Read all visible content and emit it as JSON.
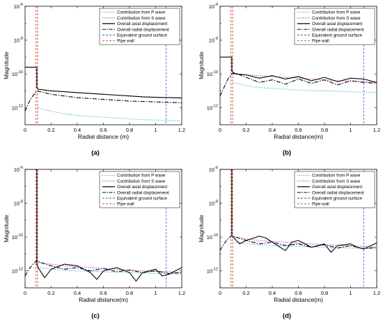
{
  "chart_data": [
    {
      "type": "line",
      "panel_label": "(a)",
      "xlabel": "Radial distance (m)",
      "ylabel": "Magnitude",
      "xlim": [
        0,
        1.2
      ],
      "ylim_log10": [
        -13,
        -6
      ],
      "x_ticks": [
        "0",
        "0.2",
        "0.4",
        "0.6",
        "0.8",
        "1",
        "1.2"
      ],
      "y_ticks": [
        "10^-6",
        "10^-8",
        "10^-10",
        "10^-12"
      ],
      "vlines": {
        "pipe_wall_x": 0.09,
        "ground_surface_x": 1.08
      },
      "legend": [
        "Contribution from P wave",
        "Contribution from S wave",
        "Overall axial displacement",
        "Overall radial displacement",
        "Equivalent ground surface",
        "Pipe wall"
      ],
      "series": [
        {
          "name": "Contribution from P wave",
          "color": "#2bb0c4",
          "style": "dotted",
          "x": [
            0.1,
            0.2,
            0.3,
            0.4,
            0.5,
            0.6,
            0.7,
            0.8,
            0.9,
            1.0,
            1.1,
            1.2
          ],
          "log10y": [
            -12.0,
            -12.2,
            -12.35,
            -12.45,
            -12.5,
            -12.55,
            -12.6,
            -12.65,
            -12.7,
            -12.72,
            -12.75,
            -12.78
          ]
        },
        {
          "name": "Contribution from S wave",
          "color": "#c21cc2",
          "style": "dotted",
          "x": [
            0.1,
            0.2,
            0.3,
            0.4,
            0.5,
            0.6,
            0.7,
            0.8,
            0.9,
            1.0,
            1.1,
            1.2
          ],
          "log10y": [
            -10.9,
            -11.0,
            -11.05,
            -11.1,
            -11.15,
            -11.2,
            -11.25,
            -11.3,
            -11.35,
            -11.37,
            -11.4,
            -11.42
          ]
        },
        {
          "name": "Overall axial displacement",
          "color": "#000000",
          "style": "solid",
          "x": [
            0,
            0.09,
            0.09,
            0.1,
            0.2,
            0.3,
            0.4,
            0.5,
            0.6,
            0.7,
            0.8,
            0.9,
            1.0,
            1.1,
            1.2
          ],
          "log10y": [
            -9.6,
            -9.6,
            -10.8,
            -10.9,
            -11.0,
            -11.05,
            -11.1,
            -11.15,
            -11.2,
            -11.25,
            -11.3,
            -11.35,
            -11.38,
            -11.4,
            -11.42
          ]
        },
        {
          "name": "Overall radial displacement",
          "color": "#000000",
          "style": "dashdot",
          "x": [
            0,
            0.02,
            0.05,
            0.09,
            0.12,
            0.2,
            0.3,
            0.4,
            0.5,
            0.6,
            0.7,
            0.8,
            0.9,
            1.0,
            1.1,
            1.2
          ],
          "log10y": [
            -12.2,
            -11.8,
            -11.4,
            -11.0,
            -11.05,
            -11.2,
            -11.3,
            -11.4,
            -11.45,
            -11.5,
            -11.55,
            -11.6,
            -11.62,
            -11.65,
            -11.68,
            -11.7
          ]
        }
      ]
    },
    {
      "type": "line",
      "panel_label": "(b)",
      "xlabel": "Radial distance(m)",
      "ylabel": "Magnitude",
      "xlim": [
        0,
        1.2
      ],
      "ylim_log10": [
        -13,
        -6
      ],
      "x_ticks": [
        "0",
        "0.2",
        "0.4",
        "0.6",
        "0.8",
        "1",
        "1.2"
      ],
      "y_ticks": [
        "10^-6",
        "10^-8",
        "10^-10",
        "10^-12"
      ],
      "vlines": {
        "pipe_wall_x": 0.09,
        "ground_surface_x": 1.1
      },
      "legend": [
        "Contribution from P wave",
        "Contribution from S wave",
        "Overall axial displacement",
        "Overall radial displacement",
        "Equivalent ground surface",
        "Pipe wall"
      ],
      "series": [
        {
          "name": "Contribution from P wave",
          "color": "#2bb0c4",
          "style": "dotted",
          "x": [
            0.1,
            0.2,
            0.3,
            0.4,
            0.5,
            0.6,
            0.7,
            0.8,
            0.9,
            1.0,
            1.1,
            1.2
          ],
          "log10y": [
            -10.5,
            -10.7,
            -10.8,
            -10.85,
            -10.9,
            -10.95,
            -10.98,
            -11.0,
            -11.02,
            -11.05,
            -11.07,
            -11.08
          ]
        },
        {
          "name": "Contribution from S wave",
          "color": "#c21cc2",
          "style": "dotted",
          "x": [
            0.1,
            0.2,
            0.3,
            0.4,
            0.5,
            0.6,
            0.7,
            0.8,
            0.9,
            1.0,
            1.1,
            1.2
          ],
          "log10y": [
            -10.0,
            -10.05,
            -10.1,
            -10.15,
            -10.2,
            -10.25,
            -10.3,
            -10.35,
            -10.4,
            -10.42,
            -10.45,
            -10.5
          ]
        },
        {
          "name": "Overall axial displacement",
          "color": "#000000",
          "style": "solid",
          "x": [
            0,
            0.09,
            0.09,
            0.12,
            0.2,
            0.3,
            0.4,
            0.5,
            0.6,
            0.7,
            0.8,
            0.9,
            1.0,
            1.1,
            1.2
          ],
          "log10y": [
            -9.0,
            -9.0,
            -9.85,
            -10.0,
            -10.05,
            -10.25,
            -10.1,
            -10.3,
            -10.15,
            -10.4,
            -10.2,
            -10.45,
            -10.25,
            -10.3,
            -10.5
          ]
        },
        {
          "name": "Overall radial displacement",
          "color": "#000000",
          "style": "dashdot",
          "x": [
            0,
            0.03,
            0.06,
            0.09,
            0.12,
            0.2,
            0.3,
            0.4,
            0.5,
            0.6,
            0.7,
            0.8,
            0.9,
            1.0,
            1.1,
            1.2
          ],
          "log10y": [
            -11.3,
            -10.8,
            -10.3,
            -10.0,
            -9.95,
            -10.2,
            -10.5,
            -10.35,
            -10.6,
            -10.3,
            -10.55,
            -10.35,
            -10.65,
            -10.4,
            -10.5,
            -10.55
          ]
        }
      ]
    },
    {
      "type": "line",
      "panel_label": "(c)",
      "xlabel": "Radial distance(m)",
      "ylabel": "Magnitude",
      "xlim": [
        0,
        1.2
      ],
      "ylim_log10": [
        -13,
        -6
      ],
      "x_ticks": [
        "0",
        "0.2",
        "0.4",
        "0.6",
        "0.8",
        "1",
        "1.2"
      ],
      "y_ticks": [
        "10^-6",
        "10^-8",
        "10^-10",
        "10^-12"
      ],
      "vlines": {
        "pipe_wall_x": 0.09,
        "ground_surface_x": 1.08
      },
      "legend": [
        "Contribution from P wave",
        "Contribution from S wave",
        "Overall axial displacement",
        "Overall radial displacement",
        "Equivalent ground surface",
        "Pipe wall"
      ],
      "series": [
        {
          "name": "Contribution from P wave",
          "color": "#2bb0c4",
          "style": "dotted",
          "x": [
            0.1,
            0.2,
            0.3,
            0.4,
            0.5,
            0.6,
            0.7,
            0.8,
            0.9,
            1.0,
            1.1,
            1.2
          ],
          "log10y": [
            -11.8,
            -11.9,
            -11.95,
            -12.0,
            -12.02,
            -12.05,
            -12.08,
            -12.1,
            -12.12,
            -12.15,
            -12.17,
            -12.2
          ]
        },
        {
          "name": "Contribution from S wave",
          "color": "#c21cc2",
          "style": "dotted",
          "x": [
            0.1,
            0.2,
            0.3,
            0.4,
            0.5,
            0.6,
            0.7,
            0.8,
            0.9,
            1.0,
            1.1,
            1.2
          ],
          "log10y": [
            -11.5,
            -11.6,
            -11.7,
            -11.75,
            -11.8,
            -11.85,
            -11.9,
            -11.95,
            -12.0,
            -12.02,
            -12.05,
            -12.1
          ]
        },
        {
          "name": "Overall axial displacement",
          "color": "#000000",
          "style": "solid",
          "x": [
            0,
            0.09,
            0.09,
            0.1,
            0.15,
            0.2,
            0.3,
            0.4,
            0.5,
            0.55,
            0.6,
            0.7,
            0.8,
            0.85,
            0.9,
            1.0,
            1.05,
            1.1,
            1.2
          ],
          "log10y": [
            -6.0,
            -6.0,
            -11.6,
            -11.8,
            -12.4,
            -11.9,
            -11.6,
            -11.7,
            -12.1,
            -12.5,
            -12.0,
            -11.8,
            -12.1,
            -12.6,
            -12.1,
            -11.9,
            -12.3,
            -12.2,
            -11.8
          ]
        },
        {
          "name": "Overall radial displacement",
          "color": "#000000",
          "style": "dashdot",
          "x": [
            0,
            0.03,
            0.06,
            0.09,
            0.12,
            0.2,
            0.3,
            0.4,
            0.5,
            0.6,
            0.7,
            0.8,
            0.9,
            1.0,
            1.1,
            1.2
          ],
          "log10y": [
            -12.3,
            -11.9,
            -11.6,
            -11.4,
            -11.5,
            -11.7,
            -11.9,
            -11.8,
            -12.0,
            -11.85,
            -12.05,
            -11.95,
            -12.1,
            -12.0,
            -12.15,
            -12.1
          ]
        }
      ]
    },
    {
      "type": "line",
      "panel_label": "(d)",
      "xlabel": "Radial distance(m)",
      "ylabel": "Magnitude",
      "xlim": [
        0,
        1.2
      ],
      "ylim_log10": [
        -13,
        -6
      ],
      "x_ticks": [
        "0",
        "0.2",
        "0.4",
        "0.6",
        "0.8",
        "1",
        "1.2"
      ],
      "y_ticks": [
        "10^-6",
        "10^-8",
        "10^-10",
        "10^-12"
      ],
      "vlines": {
        "pipe_wall_x": 0.09,
        "ground_surface_x": 1.1
      },
      "legend": [
        "Contribution from P wave",
        "Contribution from S wave",
        "Overall axial displacement",
        "Overall radial displacement",
        "Equivalent ground surface",
        "Pipe wall"
      ],
      "series": [
        {
          "name": "Contribution from P wave",
          "color": "#2bb0c4",
          "style": "dotted",
          "x": [
            0.1,
            0.2,
            0.3,
            0.4,
            0.5,
            0.6,
            0.7,
            0.8,
            0.9,
            1.0,
            1.1,
            1.2
          ],
          "log10y": [
            -10.3,
            -10.4,
            -10.45,
            -10.5,
            -10.52,
            -10.55,
            -10.58,
            -10.6,
            -10.62,
            -10.65,
            -10.67,
            -10.7
          ]
        },
        {
          "name": "Contribution from S wave",
          "color": "#c21cc2",
          "style": "dotted",
          "x": [
            0.1,
            0.2,
            0.3,
            0.4,
            0.5,
            0.6,
            0.7,
            0.8,
            0.9,
            1.0,
            1.1,
            1.2
          ],
          "log10y": [
            -10.0,
            -10.1,
            -10.2,
            -10.25,
            -10.3,
            -10.35,
            -10.4,
            -10.45,
            -10.5,
            -10.52,
            -10.55,
            -10.6
          ]
        },
        {
          "name": "Overall axial displacement",
          "color": "#000000",
          "style": "solid",
          "x": [
            0,
            0.09,
            0.09,
            0.1,
            0.15,
            0.2,
            0.3,
            0.35,
            0.4,
            0.5,
            0.55,
            0.6,
            0.7,
            0.8,
            0.85,
            0.9,
            1.0,
            1.05,
            1.1,
            1.2
          ],
          "log10y": [
            -6.0,
            -6.0,
            -9.9,
            -10.0,
            -10.4,
            -10.2,
            -9.95,
            -10.05,
            -10.3,
            -10.8,
            -10.3,
            -10.2,
            -10.6,
            -10.4,
            -10.9,
            -10.5,
            -10.4,
            -10.6,
            -10.7,
            -10.35
          ]
        },
        {
          "name": "Overall radial displacement",
          "color": "#000000",
          "style": "dashdot",
          "x": [
            0,
            0.03,
            0.06,
            0.09,
            0.12,
            0.2,
            0.3,
            0.4,
            0.5,
            0.6,
            0.7,
            0.8,
            0.9,
            1.0,
            1.1,
            1.2
          ],
          "log10y": [
            -10.8,
            -10.4,
            -10.1,
            -9.9,
            -10.0,
            -10.2,
            -10.4,
            -10.3,
            -10.5,
            -10.4,
            -10.6,
            -10.45,
            -10.65,
            -10.5,
            -10.7,
            -10.6
          ]
        }
      ]
    }
  ]
}
